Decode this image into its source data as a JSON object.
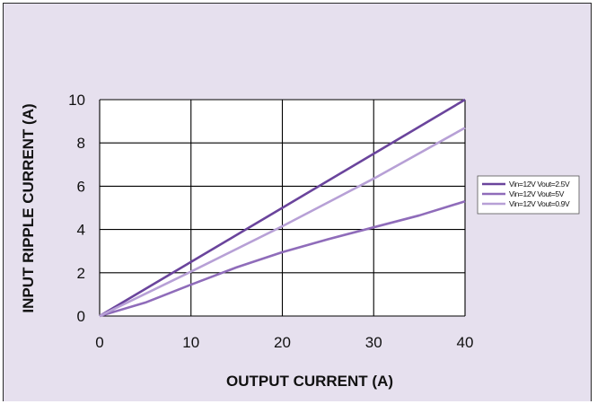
{
  "chart_data": {
    "type": "line",
    "xlabel": "OUTPUT CURRENT (A)",
    "ylabel": "INPUT RIPPLE CURRENT (A)",
    "xlim": [
      0,
      40
    ],
    "ylim": [
      0,
      10
    ],
    "xticks": [
      0,
      10,
      20,
      30,
      40
    ],
    "yticks": [
      0,
      2,
      4,
      6,
      8,
      10
    ],
    "grid": true,
    "legend_position": "right",
    "series": [
      {
        "name": "Vin=12V Vout=2.5V",
        "color": "#6a449c",
        "x": [
          0,
          10,
          20,
          30,
          40
        ],
        "y": [
          0,
          2.5,
          5.0,
          7.5,
          10.0
        ]
      },
      {
        "name": "Vin=12V Vout=5V",
        "color": "#8f6cba",
        "x": [
          0,
          5,
          10,
          15,
          20,
          25,
          30,
          35,
          40
        ],
        "y": [
          0,
          0.62,
          1.45,
          2.25,
          2.95,
          3.55,
          4.1,
          4.65,
          5.3
        ]
      },
      {
        "name": "Vin=12V Vout=0.9V",
        "color": "#b7a0d6",
        "x": [
          0,
          10,
          20,
          30,
          40
        ],
        "y": [
          0,
          2.05,
          4.15,
          6.35,
          8.7
        ]
      }
    ]
  }
}
